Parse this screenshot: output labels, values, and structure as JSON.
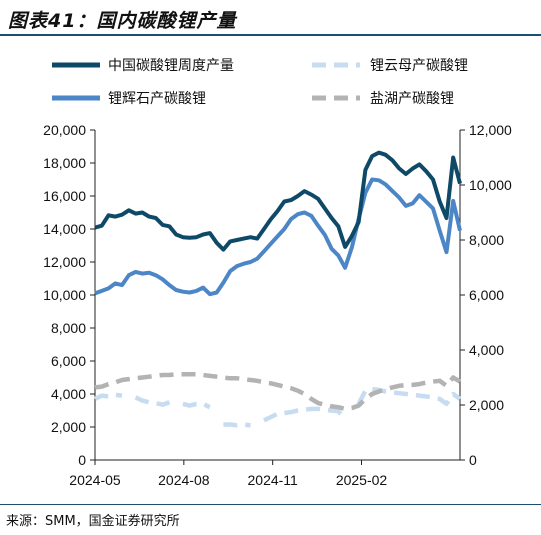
{
  "title": "图表41：国内碳酸锂产量",
  "source": "来源：SMM，国金证券研究所",
  "chart_data": {
    "type": "line",
    "x_ticks": [
      "2024-05",
      "2024-08",
      "2024-11",
      "2025-02"
    ],
    "left_axis": {
      "ylim": [
        0,
        20000
      ],
      "ticks": [
        "0",
        "2,000",
        "4,000",
        "6,000",
        "8,000",
        "10,000",
        "12,000",
        "14,000",
        "16,000",
        "18,000",
        "20,000"
      ]
    },
    "right_axis": {
      "ylim": [
        0,
        12000
      ],
      "ticks": [
        "0",
        "2,000",
        "4,000",
        "6,000",
        "8,000",
        "10,000",
        "12,000"
      ]
    },
    "grid": false,
    "legend_position": "top",
    "x_weeks": [
      "2024-05-01",
      "2024-05-08",
      "2024-05-15",
      "2024-05-22",
      "2024-05-29",
      "2024-06-05",
      "2024-06-12",
      "2024-06-19",
      "2024-06-26",
      "2024-07-03",
      "2024-07-10",
      "2024-07-17",
      "2024-07-24",
      "2024-07-31",
      "2024-08-07",
      "2024-08-14",
      "2024-08-21",
      "2024-08-28",
      "2024-09-04",
      "2024-09-11",
      "2024-09-18",
      "2024-09-25",
      "2024-10-02",
      "2024-10-09",
      "2024-10-16",
      "2024-10-23",
      "2024-10-30",
      "2024-11-06",
      "2024-11-13",
      "2024-11-20",
      "2024-11-27",
      "2024-12-04",
      "2024-12-11",
      "2024-12-18",
      "2024-12-25",
      "2025-01-01",
      "2025-01-08",
      "2025-01-15",
      "2025-01-22",
      "2025-01-29",
      "2025-02-05",
      "2025-02-12",
      "2025-02-19",
      "2025-02-26",
      "2025-03-05",
      "2025-03-12",
      "2025-03-19",
      "2025-03-26",
      "2025-04-02",
      "2025-04-09",
      "2025-04-16",
      "2025-04-23",
      "2025-04-30",
      "2025-05-07",
      "2025-05-14"
    ],
    "series": [
      {
        "name": "中国碳酸锂周度产量",
        "axis": "right",
        "color": "#0e4968",
        "style": "solid",
        "values": [
          8450,
          8520,
          8900,
          8850,
          8920,
          9080,
          8960,
          9000,
          8850,
          8800,
          8550,
          8500,
          8200,
          8100,
          8080,
          8100,
          8200,
          8250,
          7900,
          7650,
          7950,
          8000,
          8050,
          8100,
          8050,
          8400,
          8750,
          9050,
          9400,
          9450,
          9600,
          9780,
          9650,
          9500,
          9150,
          8800,
          8500,
          7750,
          8150,
          8650,
          10550,
          11050,
          11180,
          11100,
          10900,
          10600,
          10400,
          10600,
          10750,
          10500,
          10200,
          9400,
          8800,
          11000,
          10050
        ]
      },
      {
        "name": "锂云母产碳酸锂",
        "axis": "left",
        "color": "#c7dcf0",
        "style": "dash",
        "values": [
          3700,
          3900,
          3850,
          3950,
          3900,
          null,
          3800,
          3600,
          3500,
          3450,
          3350,
          3500,
          null,
          3400,
          3300,
          3400,
          3400,
          3200,
          null,
          2150,
          2150,
          2100,
          2150,
          2100,
          null,
          2400,
          2600,
          2800,
          2850,
          2900,
          3000,
          3050,
          3100,
          3100,
          3050,
          3000,
          2950,
          2500,
          null,
          3400,
          4200,
          4300,
          4250,
          4150,
          4100,
          4050,
          4000,
          3950,
          3900,
          3850,
          3800,
          3700,
          3400,
          4000,
          3700
        ]
      },
      {
        "name": "锂辉石产碳酸锂",
        "axis": "left",
        "color": "#4d86c6",
        "style": "solid",
        "values": [
          10100,
          10250,
          10400,
          10700,
          10600,
          11200,
          11400,
          11300,
          11350,
          11200,
          10950,
          10600,
          10300,
          10200,
          10150,
          10250,
          10450,
          10050,
          10150,
          10750,
          11450,
          11750,
          11900,
          12000,
          12200,
          12650,
          13100,
          13550,
          14000,
          14600,
          14900,
          15000,
          14800,
          14200,
          13650,
          12800,
          12400,
          11650,
          12900,
          14600,
          16200,
          17000,
          16950,
          16700,
          16300,
          15900,
          15400,
          15550,
          16050,
          15650,
          15250,
          13900,
          12600,
          15700,
          13900
        ]
      },
      {
        "name": "盐湖产碳酸锂",
        "axis": "left",
        "color": "#b3b3b3",
        "style": "dash",
        "values": [
          4400,
          4450,
          4600,
          4700,
          4850,
          4900,
          4950,
          5000,
          5050,
          5100,
          5150,
          5150,
          5200,
          5200,
          5200,
          5200,
          5150,
          5100,
          5050,
          5000,
          4950,
          4950,
          4900,
          4850,
          4800,
          4700,
          4650,
          4550,
          4450,
          4350,
          4200,
          4000,
          3700,
          3450,
          3350,
          3250,
          3200,
          3100,
          3150,
          3300,
          3700,
          4000,
          4150,
          4300,
          4400,
          4500,
          4550,
          4550,
          4600,
          4700,
          4750,
          4800,
          4500,
          5000,
          4750
        ]
      }
    ]
  }
}
